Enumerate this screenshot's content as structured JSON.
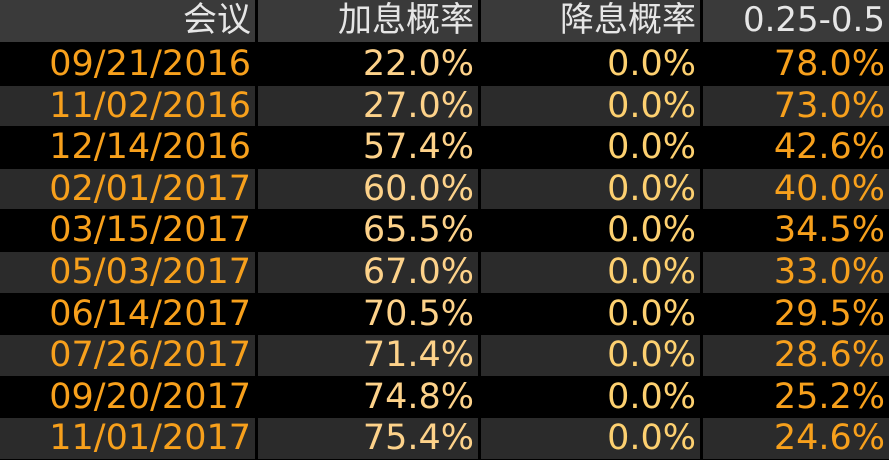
{
  "table": {
    "header": [
      "会议",
      "加息概率",
      "降息概率",
      "0.25-0.5"
    ],
    "rows": [
      [
        "09/21/2016",
        "22.0%",
        "0.0%",
        "78.0%"
      ],
      [
        "11/02/2016",
        "27.0%",
        "0.0%",
        "73.0%"
      ],
      [
        "12/14/2016",
        "57.4%",
        "0.0%",
        "42.6%"
      ],
      [
        "02/01/2017",
        "60.0%",
        "0.0%",
        "40.0%"
      ],
      [
        "03/15/2017",
        "65.5%",
        "0.0%",
        "34.5%"
      ],
      [
        "05/03/2017",
        "67.0%",
        "0.0%",
        "33.0%"
      ],
      [
        "06/14/2017",
        "70.5%",
        "0.0%",
        "29.5%"
      ],
      [
        "07/26/2017",
        "71.4%",
        "0.0%",
        "28.6%"
      ],
      [
        "09/20/2017",
        "74.8%",
        "0.0%",
        "25.2%"
      ],
      [
        "11/01/2017",
        "75.4%",
        "0.0%",
        "24.6%"
      ]
    ]
  }
}
